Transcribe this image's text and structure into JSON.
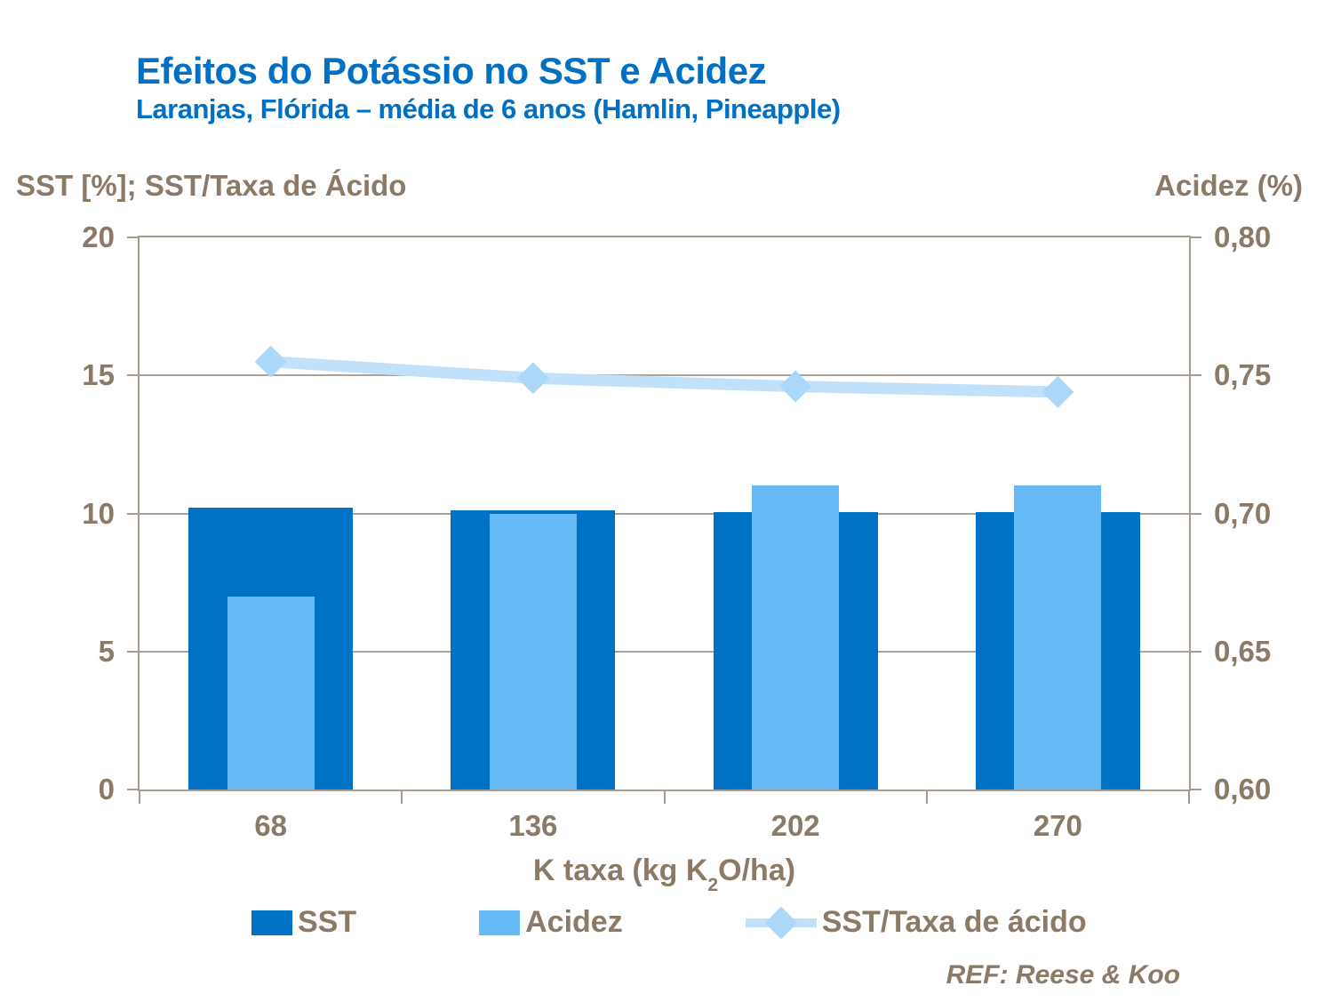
{
  "header": {
    "title": "Efeitos do Potássio no SST e Acidez",
    "subtitle": "Laranjas, Flórida – média de 6 anos (Hamlin, Pineapple)"
  },
  "chart_data": {
    "type": "bar",
    "subtype": "combo bar + line, dual axis, overlapped bars",
    "title": "Efeitos do Potássio no SST e Acidez",
    "subtitle": "Laranjas, Flórida – média de 6 anos (Hamlin, Pineapple)",
    "categories": [
      "68",
      "136",
      "202",
      "270"
    ],
    "series": [
      {
        "name": "SST",
        "kind": "bar",
        "axis": "left",
        "color": "#0072c6",
        "values": [
          10.2,
          10.1,
          10.05,
          10.05
        ]
      },
      {
        "name": "Acidez",
        "kind": "bar",
        "axis": "right",
        "color": "#66bbf7",
        "values": [
          0.67,
          0.7,
          0.71,
          0.71
        ]
      },
      {
        "name": "SST/Taxa de ácido",
        "kind": "line",
        "axis": "left",
        "color": "#c1e1fa",
        "marker_color": "#abd7f9",
        "marker": "diamond",
        "values": [
          15.5,
          14.9,
          14.6,
          14.4
        ]
      }
    ],
    "left_axis": {
      "title": "SST [%]; SST/Taxa de Ácido",
      "min": 0,
      "max": 20,
      "ticks": [
        "20",
        "15",
        "10",
        "5",
        "0"
      ]
    },
    "right_axis": {
      "title": "Acidez (%)",
      "min": 0.6,
      "max": 0.8,
      "ticks": [
        "0,80",
        "0,75",
        "0,70",
        "0,65",
        "0,60"
      ]
    },
    "x_axis": {
      "title_parts": {
        "pre": "K taxa (kg K",
        "sub": "2",
        "post": "O/ha)"
      },
      "labels": [
        "68",
        "136",
        "202",
        "270"
      ]
    },
    "grid": "horizontal gridlines at left-axis tick values, plot area fully framed",
    "legend_position": "bottom"
  },
  "legend": {
    "items": [
      {
        "label": "SST",
        "swatch": "square",
        "color": "#0072c6"
      },
      {
        "label": "Acidez",
        "swatch": "square",
        "color": "#66bbf7"
      },
      {
        "label": "SST/Taxa de ácido",
        "swatch": "line-diamond",
        "color": "#c1e1fa",
        "marker_color": "#abd7f9"
      }
    ]
  },
  "footer": {
    "reference": "REF: Reese & Koo"
  },
  "colors": {
    "title_text": "#0070c5",
    "axis_text": "#8a7a67",
    "axis_line": "#a79b8d",
    "gridline": "#ada296",
    "sst_bar": "#0072c6",
    "acidez_bar": "#66bbf7",
    "ratio_line": "#c1e1fa"
  }
}
